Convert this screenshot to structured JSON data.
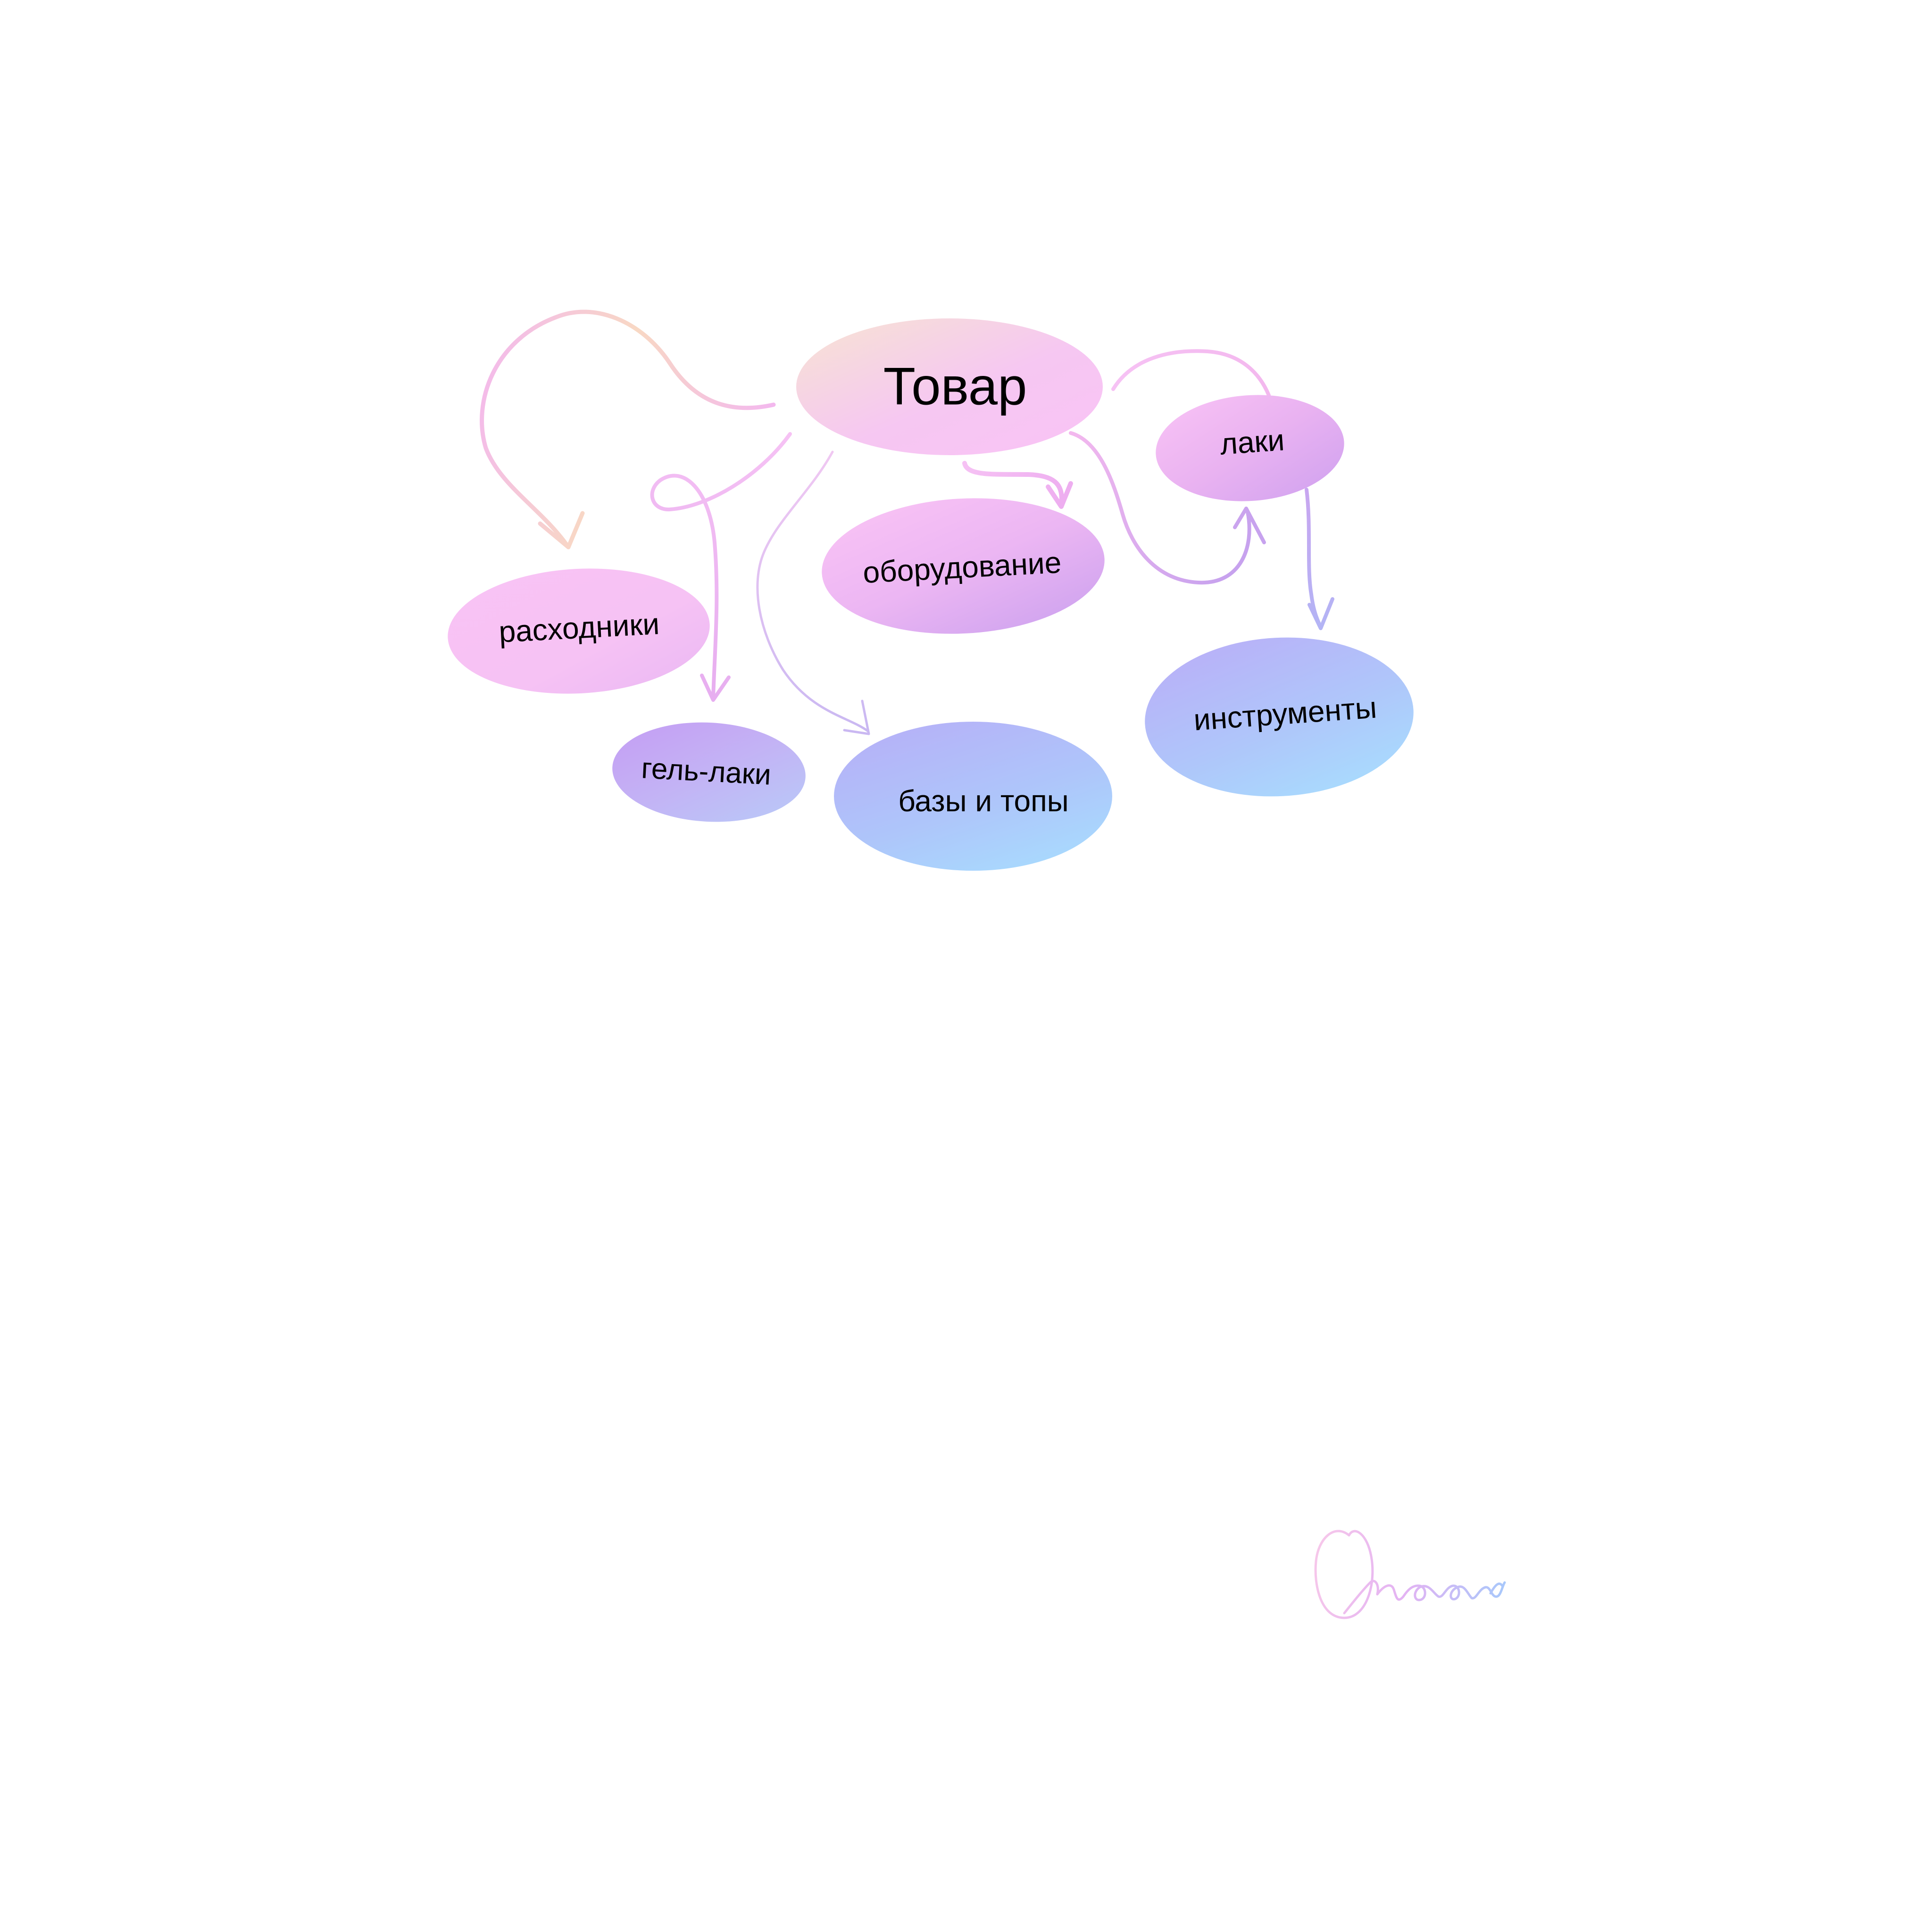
{
  "diagram": {
    "root": {
      "label": "Товар",
      "colors": [
        "#f7e4d2",
        "#f6c7f2",
        "#f9c3f5"
      ]
    },
    "nodes": [
      {
        "id": "lacquers",
        "label": "лаки",
        "colors": [
          "#f9c3f5",
          "#e9b2f1",
          "#cfa1f0"
        ]
      },
      {
        "id": "equipment",
        "label": "оборудование",
        "colors": [
          "#f9c3f5",
          "#ecb6f3",
          "#cda2ef"
        ]
      },
      {
        "id": "consumables",
        "label": "расходники",
        "colors": [
          "#f9c3f5",
          "#f6c2f4",
          "#eab8f3"
        ]
      },
      {
        "id": "gel-polish",
        "label": "гель-лаки",
        "colors": [
          "#c59cf3",
          "#c3b3f5",
          "#b8cbf8"
        ]
      },
      {
        "id": "bases-tops",
        "label": "базы и топы",
        "colors": [
          "#b6b1f8",
          "#aec5fa",
          "#a8dbfe"
        ]
      },
      {
        "id": "tools",
        "label": "инструменты",
        "colors": [
          "#b9b0f8",
          "#afc6fa",
          "#a8dcfe"
        ]
      }
    ],
    "arrows": [
      {
        "from": "root",
        "to": "consumables",
        "color": "#f3b8ee",
        "color2": "#f8d8c4"
      },
      {
        "from": "root",
        "to": "gel-polish",
        "color": "#e7aef0",
        "color2": "#f6c2f4"
      },
      {
        "from": "root",
        "to": "bases-tops",
        "color": "#c9b8f2",
        "color2": "#f0c8f2"
      },
      {
        "from": "root",
        "to": "equipment",
        "color": "#eeaef0",
        "color2": "#f6c2f4"
      },
      {
        "from": "root",
        "to": "lacquers",
        "color": "#c7a2ee",
        "color2": "#f3b8ee"
      },
      {
        "from": "root",
        "to": "lacquers-top",
        "color": "#f3b8ee",
        "color2": "#f6c2f4"
      },
      {
        "from": "lacquers",
        "to": "tools",
        "color": "#b3b4f5",
        "color2": "#c8a6f0"
      }
    ]
  },
  "signature": {
    "text": "Антонова",
    "colors": [
      "#f7c8ea",
      "#e3b3f3",
      "#a8c8fb"
    ]
  }
}
